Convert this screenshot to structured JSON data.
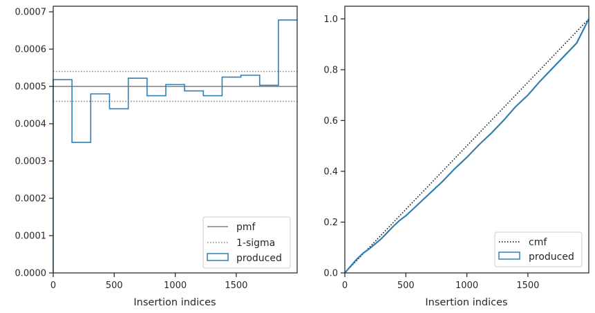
{
  "colors": {
    "produced": "#2f7fb4",
    "pmf": "#808080",
    "sigma": "#808080",
    "cmf": "#000000",
    "axes": "#262626"
  },
  "chart_data": [
    {
      "type": "step",
      "xlabel": "Insertion indices",
      "ylabel": "",
      "xlim": [
        0,
        1999
      ],
      "ylim": [
        0,
        0.000715
      ],
      "x_ticks": [
        0,
        500,
        1000,
        1500
      ],
      "x_tick_labels": [
        "0",
        "500",
        "1000",
        "1500"
      ],
      "y_ticks": [
        0,
        0.0001,
        0.0002,
        0.0003,
        0.0004,
        0.0005,
        0.0006,
        0.0007
      ],
      "y_tick_labels": [
        "0.0000",
        "0.0001",
        "0.0002",
        "0.0003",
        "0.0004",
        "0.0005",
        "0.0006",
        "0.0007"
      ],
      "grid": false,
      "legend_position": "bottom-right",
      "pmf": 0.0005,
      "sigma_band": [
        0.00046,
        0.00054
      ],
      "produced": {
        "bin_edges": [
          0,
          153.8,
          307.6,
          461.4,
          615.2,
          769,
          922.8,
          1076.6,
          1230.4,
          1384.2,
          1538,
          1691.8,
          1845.6,
          1999
        ],
        "values": [
          0.000518,
          0.00035,
          0.00048,
          0.00044,
          0.000522,
          0.000475,
          0.000505,
          0.000488,
          0.000475,
          0.000525,
          0.00053,
          0.000503,
          0.000678
        ]
      },
      "legend": [
        "pmf",
        "1-sigma",
        "produced"
      ]
    },
    {
      "type": "line",
      "xlabel": "Insertion indices",
      "ylabel": "",
      "xlim": [
        0,
        1999
      ],
      "ylim": [
        0,
        1.05
      ],
      "x_ticks": [
        0,
        500,
        1000,
        1500
      ],
      "x_tick_labels": [
        "0",
        "500",
        "1000",
        "1500"
      ],
      "y_ticks": [
        0,
        0.2,
        0.4,
        0.6,
        0.8,
        1.0
      ],
      "y_tick_labels": [
        "0.0",
        "0.2",
        "0.4",
        "0.6",
        "0.8",
        "1.0"
      ],
      "grid": false,
      "legend_position": "bottom-right",
      "cmf": {
        "x": [
          0,
          1999
        ],
        "y": [
          0,
          1
        ]
      },
      "produced": {
        "x": [
          0,
          50,
          100,
          150,
          200,
          250,
          300,
          350,
          400,
          450,
          500,
          600,
          700,
          800,
          900,
          1000,
          1100,
          1200,
          1300,
          1400,
          1500,
          1600,
          1700,
          1800,
          1900,
          1999
        ],
        "y": [
          0,
          0.028,
          0.055,
          0.078,
          0.095,
          0.115,
          0.135,
          0.16,
          0.185,
          0.207,
          0.225,
          0.27,
          0.315,
          0.36,
          0.41,
          0.455,
          0.505,
          0.55,
          0.6,
          0.655,
          0.7,
          0.755,
          0.805,
          0.855,
          0.905,
          1.0
        ]
      },
      "legend": [
        "cmf",
        "produced"
      ]
    }
  ]
}
